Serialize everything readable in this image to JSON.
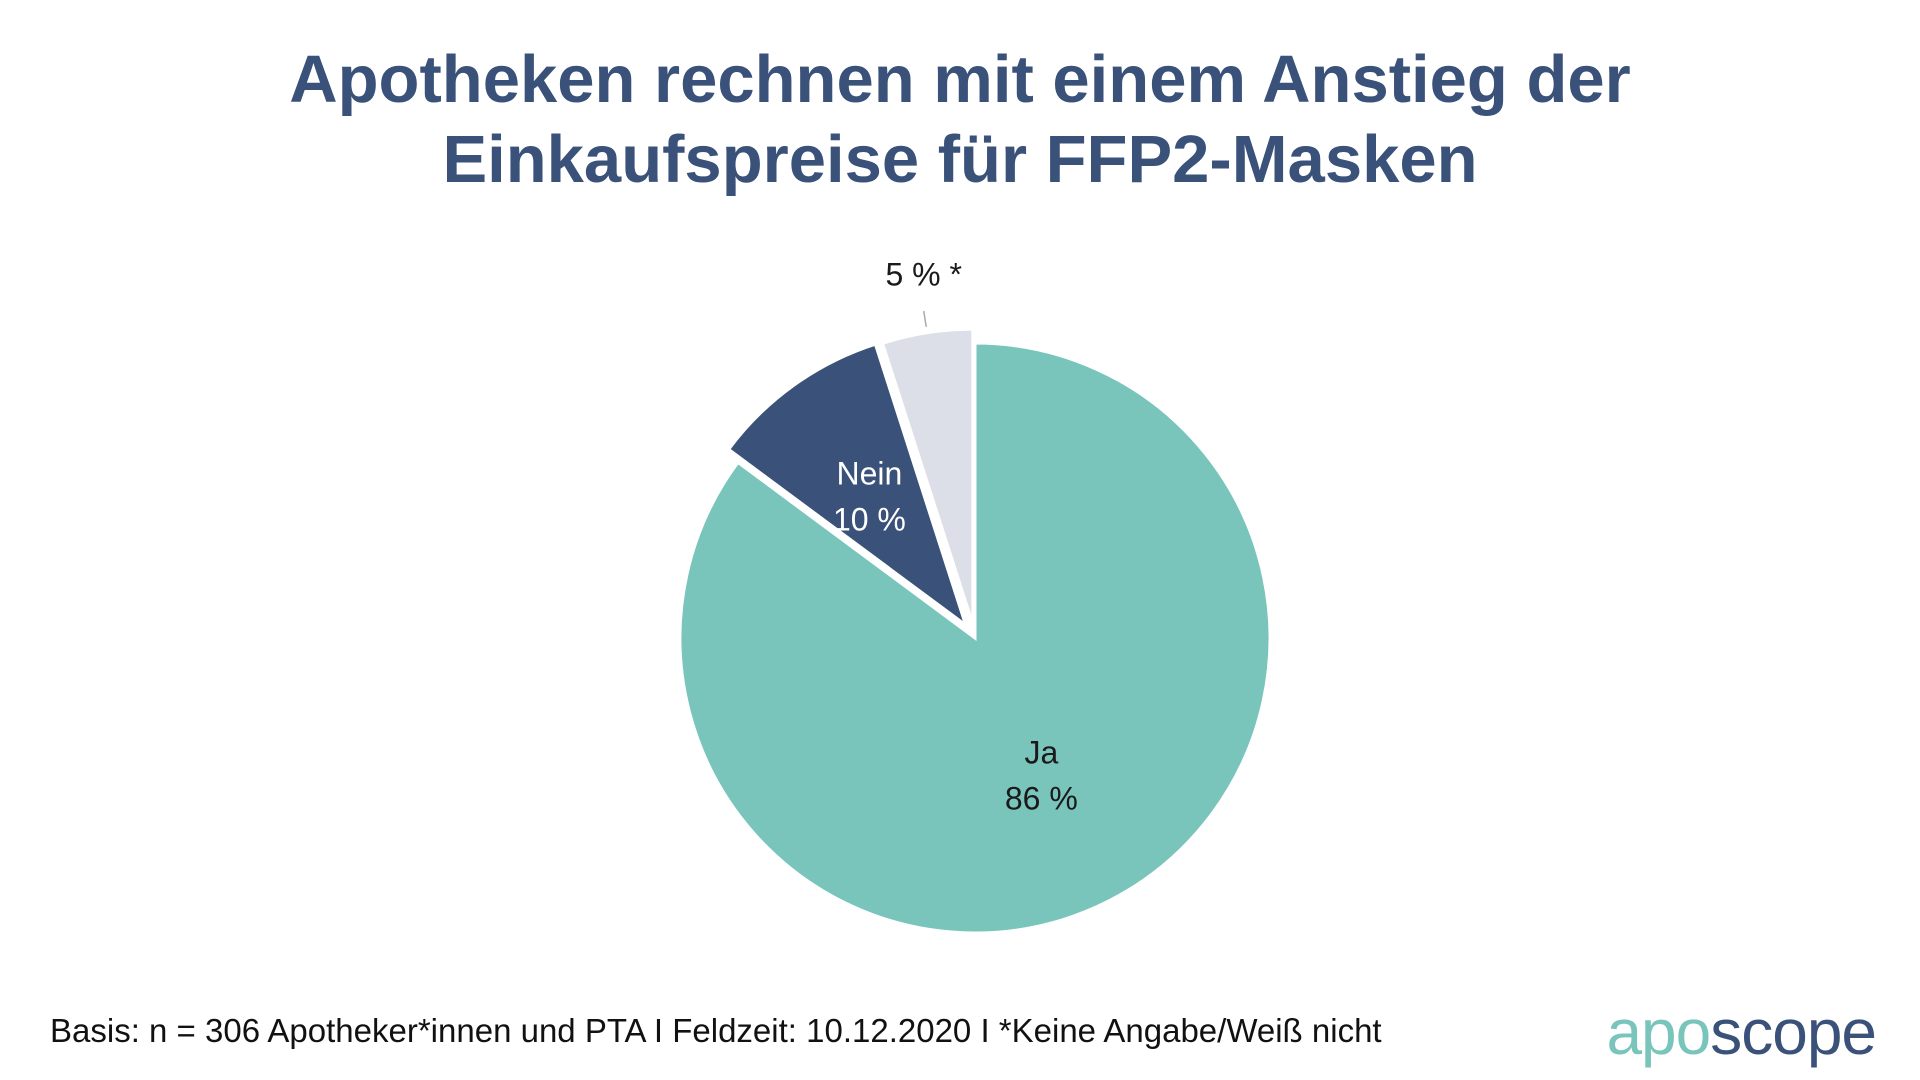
{
  "chart_data": {
    "type": "pie",
    "title_lines": [
      "Apotheken rechnen mit einem Anstieg der",
      "Einkaufspreise für FFP2-Masken"
    ],
    "slices": [
      {
        "name": "Ja",
        "value": 86,
        "label": "86 %",
        "color": "#79c5bb",
        "label_color": "#1a1a1a"
      },
      {
        "name": "Nein",
        "value": 10,
        "label": "10 %",
        "color": "#3a5179",
        "label_color": "#ffffff"
      },
      {
        "name": "Keine Angabe/Weiß nicht",
        "value": 5,
        "label": "5 % *",
        "color": "#dcdfe8",
        "label_color": "#1a1a1a"
      }
    ]
  },
  "footnote": "Basis: n = 306 Apotheker*innen und PTA I Feldzeit: 10.12.2020 I *Keine Angabe/Weiß nicht",
  "logo": {
    "part1": "apo",
    "part2": "scope"
  }
}
